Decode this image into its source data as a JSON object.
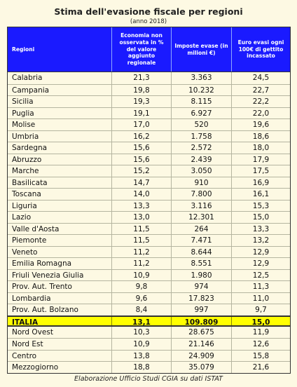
{
  "title": "Stima dell'evasione fiscale per regioni",
  "subtitle": "(anno 2018)",
  "table": {
    "headers": [
      "Regioni",
      "Economia non osservata in % del valore aggiunto regionale",
      "Imposte evase (in milioni €)",
      "Euro evasi ogni 100€ di gettito incassato"
    ],
    "rows": [
      [
        "Calabria",
        "21,3",
        "3.363",
        "24,5"
      ],
      [
        "Campania",
        "19,8",
        "10.232",
        "22,7"
      ],
      [
        "Sicilia",
        "19,3",
        "8.115",
        "22,2"
      ],
      [
        "Puglia",
        "19,1",
        "6.927",
        "22,0"
      ],
      [
        "Molise",
        "17,0",
        "520",
        "19,6"
      ],
      [
        "Umbria",
        "16,2",
        "1.758",
        "18,6"
      ],
      [
        "Sardegna",
        "15,6",
        "2.572",
        "18,0"
      ],
      [
        "Abruzzo",
        "15,6",
        "2.439",
        "17,9"
      ],
      [
        "Marche",
        "15,2",
        "3.050",
        "17,5"
      ],
      [
        "Basilicata",
        "14,7",
        "910",
        "16,9"
      ],
      [
        "Toscana",
        "14,0",
        "7.800",
        "16,1"
      ],
      [
        "Liguria",
        "13,3",
        "3.116",
        "15,3"
      ],
      [
        "Lazio",
        "13,0",
        "12.301",
        "15,0"
      ],
      [
        "Valle d'Aosta",
        "11,5",
        "264",
        "13,3"
      ],
      [
        "Piemonte",
        "11,5",
        "7.471",
        "13,2"
      ],
      [
        "Veneto",
        "11,2",
        "8.644",
        "12,9"
      ],
      [
        "Emilia Romagna",
        "11,2",
        "8.551",
        "12,9"
      ],
      [
        "Friuli Venezia Giulia",
        "10,9",
        "1.980",
        "12,5"
      ],
      [
        "Prov. Aut. Trento",
        "9,8",
        "974",
        "11,3"
      ],
      [
        "Lombardia",
        "9,6",
        "17.823",
        "11,0"
      ],
      [
        "Prov. Aut. Bolzano",
        "8,4",
        "997",
        "9,7"
      ]
    ],
    "total": [
      "ITALIA",
      "13,1",
      "109.809",
      "15,0"
    ],
    "areas": [
      [
        "Nord Ovest",
        "10,3",
        "28.675",
        "11,9"
      ],
      [
        "Nord Est",
        "10,9",
        "21.146",
        "12,6"
      ],
      [
        "Centro",
        "13,8",
        "24.909",
        "15,8"
      ],
      [
        "Mezzogiorno",
        "18,8",
        "35.079",
        "21,6"
      ]
    ],
    "total_highlight_color": "#ffff00",
    "header_color": "#1a1aff"
  },
  "footer": "Elaborazione Ufficio Studi CGIA su dati ISTAT"
}
